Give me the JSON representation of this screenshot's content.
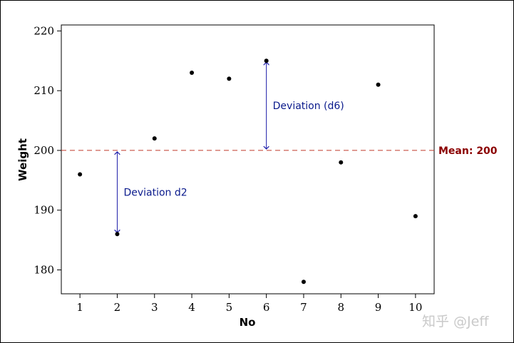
{
  "chart_data": {
    "type": "scatter",
    "title": "",
    "xlabel": "No",
    "ylabel": "Weight",
    "x": [
      1,
      2,
      3,
      4,
      5,
      6,
      7,
      8,
      9,
      10
    ],
    "y": [
      196,
      186,
      202,
      213,
      212,
      215,
      178,
      198,
      211,
      189
    ],
    "xlim": [
      0.5,
      10.5
    ],
    "ylim": [
      176,
      221
    ],
    "xticks": [
      "1",
      "2",
      "3",
      "4",
      "5",
      "6",
      "7",
      "8",
      "9",
      "10"
    ],
    "yticks": [
      "180",
      "190",
      "200",
      "210",
      "220"
    ],
    "grid": false,
    "mean": 200,
    "mean_label": "Mean: 200",
    "mean_color": "#c0392b",
    "point_color": "#000000",
    "arrow_color": "#1a1aa8",
    "annotations": [
      {
        "label": "Deviation d2",
        "x": 2,
        "from": 186,
        "to": 200
      },
      {
        "label": "Deviation (d6)",
        "x": 6,
        "from": 215,
        "to": 200
      }
    ]
  },
  "watermark": "知乎 @Jeff"
}
